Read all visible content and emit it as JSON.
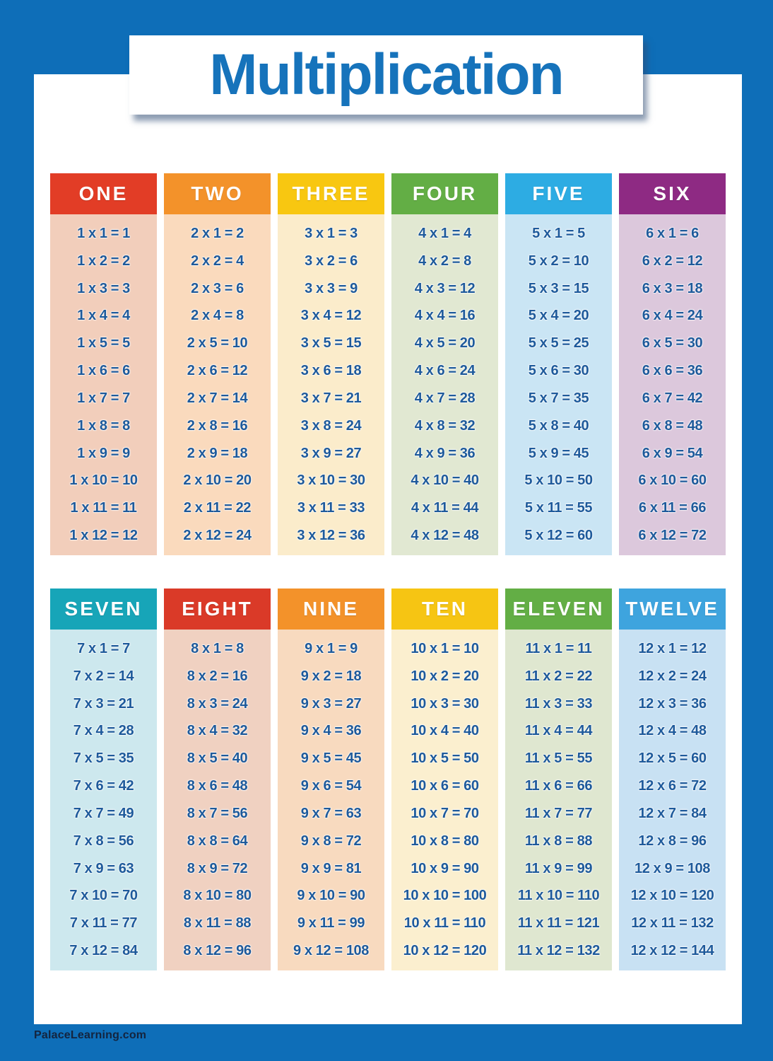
{
  "title": "Multiplication",
  "footer": "PalaceLearning.com",
  "colors": {
    "frame_blue": "#0e6eb8",
    "title_text": "#1673bb",
    "fact_text": "#1e5a9b",
    "header_text": "#ffffff",
    "footer_text": "#14243e",
    "content_bg": "#ffffff"
  },
  "tables": [
    {
      "name": "one",
      "header": "ONE",
      "header_color": "#e23d26",
      "body_color": "#f2cebb",
      "facts": [
        "1 x 1 = 1",
        "1 x 2 = 2",
        "1 x 3 = 3",
        "1 x 4 = 4",
        "1 x 5 = 5",
        "1 x 6 = 6",
        "1 x 7 = 7",
        "1 x 8 = 8",
        "1 x 9 = 9",
        "1 x 10 = 10",
        "1 x 11 = 11",
        "1 x 12 = 12"
      ]
    },
    {
      "name": "two",
      "header": "TWO",
      "header_color": "#f3922a",
      "body_color": "#fadabd",
      "facts": [
        "2 x 1 = 2",
        "2 x 2 = 4",
        "2 x 3 = 6",
        "2 x 4 = 8",
        "2 x 5 = 10",
        "2 x 6 = 12",
        "2 x 7 = 14",
        "2 x 8 = 16",
        "2 x 9 = 18",
        "2 x 10 = 20",
        "2 x 11 = 22",
        "2 x 12 = 24"
      ]
    },
    {
      "name": "three",
      "header": "THREE",
      "header_color": "#f8c711",
      "body_color": "#fbeccb",
      "facts": [
        "3 x 1 = 3",
        "3 x 2 = 6",
        "3 x 3 = 9",
        "3 x 4 = 12",
        "3 x 5 = 15",
        "3 x 6 = 18",
        "3 x 7 = 21",
        "3 x 8 = 24",
        "3 x 9 = 27",
        "3 x 10 = 30",
        "3 x 11 = 33",
        "3 x 12 = 36"
      ]
    },
    {
      "name": "four",
      "header": "FOUR",
      "header_color": "#63ae45",
      "body_color": "#e1e8d2",
      "facts": [
        "4 x 1 = 4",
        "4 x 2 = 8",
        "4 x 3 = 12",
        "4 x 4 = 16",
        "4 x 5 = 20",
        "4 x 6 = 24",
        "4 x 7 = 28",
        "4 x 8 = 32",
        "4 x 9 = 36",
        "4 x 10 = 40",
        "4 x 11 = 44",
        "4 x 12 = 48"
      ]
    },
    {
      "name": "five",
      "header": "FIVE",
      "header_color": "#2dace3",
      "body_color": "#cae5f4",
      "facts": [
        "5 x 1 = 5",
        "5 x 2 = 10",
        "5 x 3 = 15",
        "5 x 4 = 20",
        "5 x 5 = 25",
        "5 x 6 = 30",
        "5 x 7 = 35",
        "5 x 8 = 40",
        "5 x 9 = 45",
        "5 x 10 = 50",
        "5 x 11 = 55",
        "5 x 12 = 60"
      ]
    },
    {
      "name": "six",
      "header": "SIX",
      "header_color": "#8e2a83",
      "body_color": "#dcc8dc",
      "facts": [
        "6 x 1 = 6",
        "6 x 2 = 12",
        "6 x 3 = 18",
        "6 x 4 = 24",
        "6 x 5 = 30",
        "6 x 6 = 36",
        "6 x 7 = 42",
        "6 x 8 = 48",
        "6 x 9 = 54",
        "6 x 10 = 60",
        "6 x 11 = 66",
        "6 x 12 = 72"
      ]
    },
    {
      "name": "seven",
      "header": "SEVEN",
      "header_color": "#17a5b8",
      "body_color": "#cde8ee",
      "facts": [
        "7 x 1 = 7",
        "7 x 2 = 14",
        "7 x 3 = 21",
        "7 x 4 = 28",
        "7 x 5 = 35",
        "7 x 6 = 42",
        "7 x 7 = 49",
        "7 x 8 = 56",
        "7 x 9 = 63",
        "7 x 10 = 70",
        "7 x 11 = 77",
        "7 x 12 = 84"
      ]
    },
    {
      "name": "eight",
      "header": "EIGHT",
      "header_color": "#da3a28",
      "body_color": "#f0d1c1",
      "facts": [
        "8 x 1 = 8",
        "8 x 2 = 16",
        "8 x 3 = 24",
        "8 x 4 = 32",
        "8 x 5 = 40",
        "8 x 6 = 48",
        "8 x 7 = 56",
        "8 x 8 = 64",
        "8 x 9 = 72",
        "8 x 10 = 80",
        "8 x 11 = 88",
        "8 x 12 = 96"
      ]
    },
    {
      "name": "nine",
      "header": "NINE",
      "header_color": "#f3922a",
      "body_color": "#f8dabf",
      "facts": [
        "9 x 1 = 9",
        "9 x 2 = 18",
        "9 x 3 = 27",
        "9 x 4 = 36",
        "9 x 5 = 45",
        "9 x 6 = 54",
        "9 x 7 = 63",
        "9 x 8 = 72",
        "9 x 9 = 81",
        "9 x 10 = 90",
        "9 x 11 = 99",
        "9 x 12 = 108"
      ]
    },
    {
      "name": "ten",
      "header": "TEN",
      "header_color": "#f6c513",
      "body_color": "#fbefcf",
      "facts": [
        "10 x 1 = 10",
        "10 x 2 = 20",
        "10 x 3 = 30",
        "10 x 4 = 40",
        "10 x 5 = 50",
        "10 x 6 = 60",
        "10 x 7 = 70",
        "10 x 8 = 80",
        "10 x 9 = 90",
        "10 x 10 = 100",
        "10 x 11 = 110",
        "10 x 12 = 120"
      ]
    },
    {
      "name": "eleven",
      "header": "ELEVEN",
      "header_color": "#63ae45",
      "body_color": "#dfe7d0",
      "facts": [
        "11 x 1 = 11",
        "11 x 2 = 22",
        "11 x 3 = 33",
        "11 x 4 = 44",
        "11 x 5 = 55",
        "11 x 6 = 66",
        "11 x 7 = 77",
        "11 x 8 = 88",
        "11 x 9 = 99",
        "11 x 10 = 110",
        "11 x 11 = 121",
        "11 x 12 = 132"
      ]
    },
    {
      "name": "twelve",
      "header": "TWELVE",
      "header_color": "#3ea4de",
      "body_color": "#c8e1f3",
      "facts": [
        "12 x 1 = 12",
        "12 x 2 = 24",
        "12 x 3 = 36",
        "12 x 4 = 48",
        "12 x 5 = 60",
        "12 x 6 = 72",
        "12 x 7 = 84",
        "12 x 8 = 96",
        "12 x 9 = 108",
        "12 x 10 = 120",
        "12 x 11 = 132",
        "12 x 12 = 144"
      ]
    }
  ]
}
